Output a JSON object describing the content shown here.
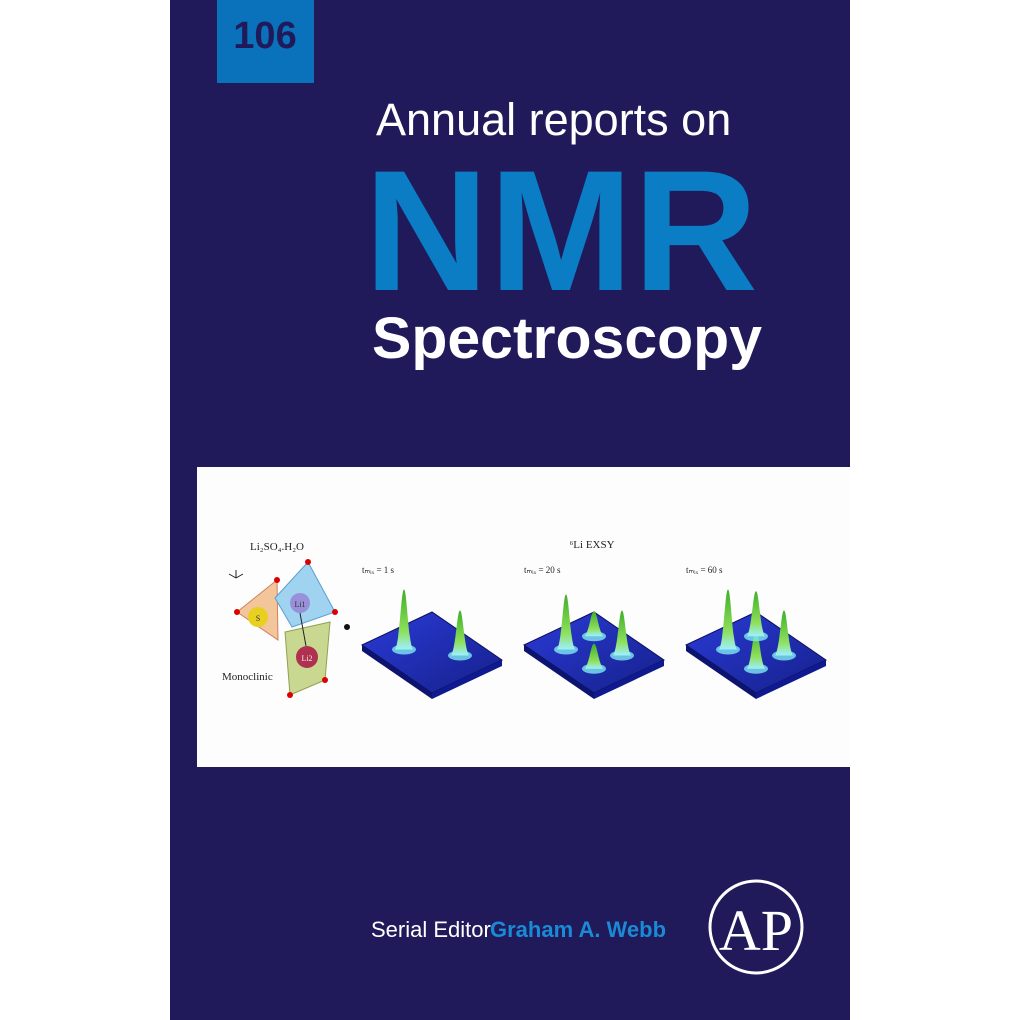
{
  "cover": {
    "volume": "106",
    "series_line": "Annual reports on",
    "title": "NMR",
    "subtitle": "Spectroscopy",
    "editor_label": "Serial Editor",
    "editor_name": "Graham A. Webb",
    "publisher_logo": "AP"
  },
  "figure": {
    "compound": "Li₂SO₄.H₂O",
    "structure": "Monoclinic",
    "atoms": [
      "S",
      "Li1",
      "Li2"
    ],
    "experiment": "⁶Li EXSY",
    "panels": [
      "tₘᵢₓ = 1 s",
      "tₘᵢₓ = 20 s",
      "tₘᵢₓ = 60 s"
    ]
  }
}
